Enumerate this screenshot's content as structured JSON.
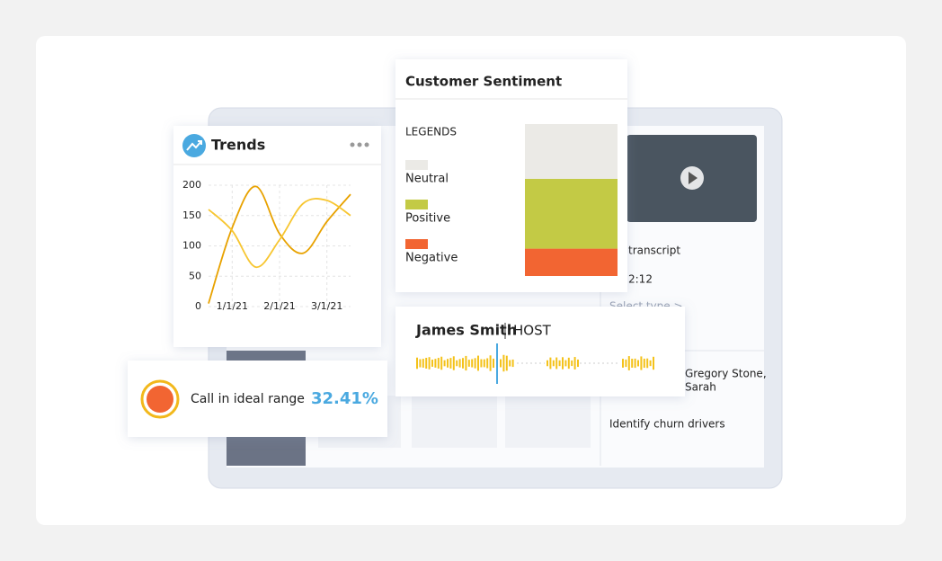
{
  "chart_data": [
    {
      "type": "line",
      "title": "Trends",
      "categories": [
        null,
        "1/1/21",
        null,
        "2/1/21",
        null,
        "3/1/21",
        null
      ],
      "series": [
        {
          "name": null,
          "color": "#e8a200",
          "values": [
            5,
            130,
            198,
            120,
            88,
            140,
            185
          ]
        },
        {
          "name": null,
          "color": "#f7c631",
          "values": [
            160,
            125,
            65,
            110,
            170,
            175,
            150
          ]
        }
      ],
      "ylim": [
        0,
        200
      ],
      "yticks": [
        0,
        50,
        100,
        150,
        200
      ],
      "grid": true
    },
    {
      "type": "stacked_bar",
      "title": "Customer Sentiment",
      "legend_title": "LEGENDS",
      "series": [
        {
          "name": "Neutral",
          "color": "#ebeae6",
          "values": [
            36
          ]
        },
        {
          "name": "Positive",
          "color": "#c3ca45",
          "values": [
            46
          ]
        },
        {
          "name": "Negative",
          "color": "#f26532",
          "values": [
            18
          ]
        }
      ]
    }
  ],
  "call_range": {
    "label": "Call in ideal range",
    "value_label": "32.41%"
  },
  "host": {
    "name": "James Smith",
    "role": "HOST"
  },
  "details": [
    "transcript",
    "2:12",
    "Select type >",
    "Gregory Stone,",
    "Sarah",
    "Identify churn drivers"
  ]
}
